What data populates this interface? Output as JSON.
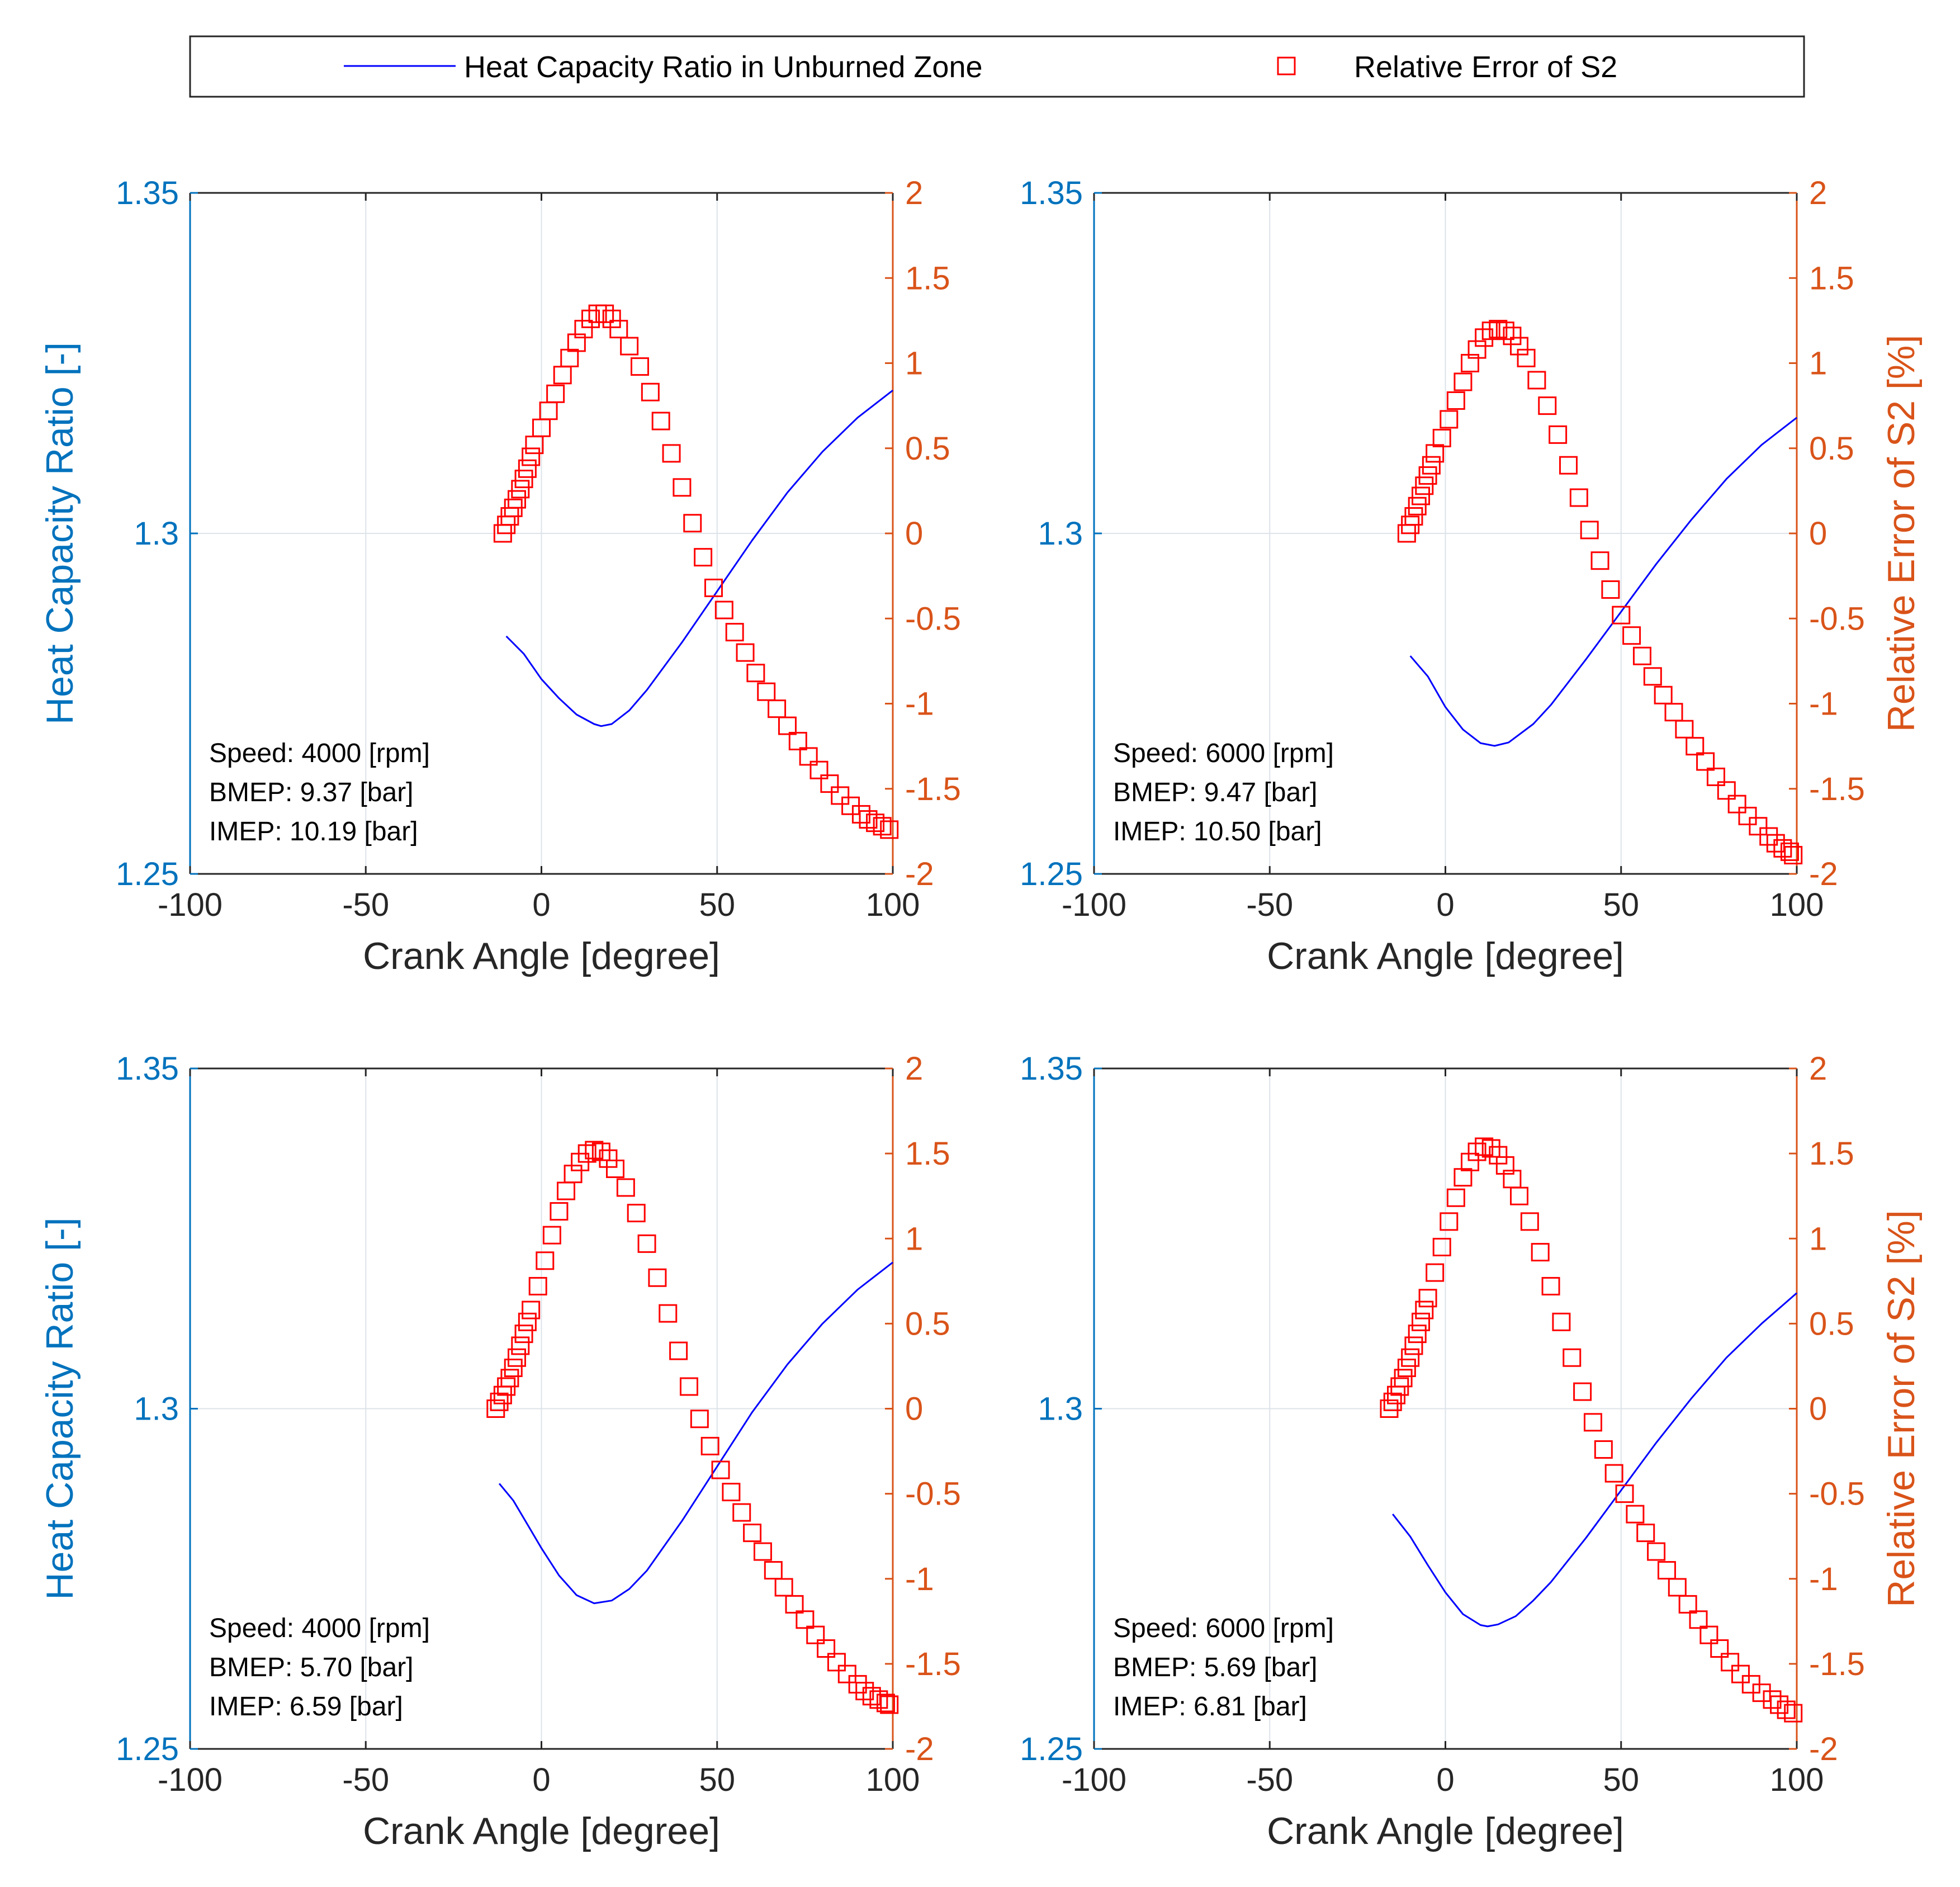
{
  "colors": {
    "left_axis": "#0072BD",
    "right_axis": "#D95319",
    "line": "#0000FF",
    "marker": "#FF0000",
    "grid": "#DDE3EA",
    "frame": "#262626"
  },
  "legend": {
    "line_label": "Heat Capacity Ratio in Unburned Zone",
    "marker_label": "Relative Error of S2",
    "placement": "top"
  },
  "chart_data": [
    {
      "type": "line",
      "position": "top-left",
      "xlabel": "Crank Angle [degree]",
      "ylabel_left": "Heat Capacity Ratio [-]",
      "ylabel_right": "",
      "xlim": [
        -100,
        100
      ],
      "ylim_left": [
        1.25,
        1.35
      ],
      "ylim_right": [
        -2,
        2
      ],
      "xticks": [
        "-100",
        "-50",
        "0",
        "50",
        "100"
      ],
      "yticks_left": [
        "1.25",
        "1.3",
        "1.35"
      ],
      "yticks_right": [
        "-2",
        "-1.5",
        "-1",
        "-0.5",
        "0",
        "0.5",
        "1",
        "1.5",
        "2"
      ],
      "grid": true,
      "annotation": [
        "Speed: 4000 [rpm]",
        "BMEP: 9.37 [bar]",
        "IMEP:  10.19 [bar]"
      ],
      "line_series": {
        "name": "Heat Capacity Ratio in Unburned Zone",
        "x": [
          -10,
          -5,
          0,
          5,
          10,
          15,
          17,
          20,
          25,
          30,
          40,
          50,
          60,
          70,
          80,
          90,
          100
        ],
        "y": [
          1.2849,
          1.2823,
          1.2786,
          1.2758,
          1.2734,
          1.272,
          1.2717,
          1.272,
          1.274,
          1.277,
          1.284,
          1.2915,
          1.299,
          1.306,
          1.312,
          1.317,
          1.321
        ]
      },
      "marker_series": {
        "name": "Relative Error of S2",
        "x": [
          -11,
          -10,
          -9,
          -8,
          -7,
          -6,
          -5,
          -4,
          -3,
          -2,
          0,
          2,
          4,
          6,
          8,
          10,
          12,
          14,
          16,
          18,
          20,
          22,
          25,
          28,
          31,
          34,
          37,
          40,
          43,
          46,
          49,
          52,
          55,
          58,
          61,
          64,
          67,
          70,
          73,
          76,
          79,
          82,
          85,
          88,
          91,
          93,
          95,
          97,
          99
        ],
        "y": [
          0.0,
          0.05,
          0.1,
          0.15,
          0.2,
          0.26,
          0.32,
          0.38,
          0.45,
          0.52,
          0.62,
          0.72,
          0.82,
          0.93,
          1.03,
          1.12,
          1.2,
          1.26,
          1.29,
          1.29,
          1.26,
          1.2,
          1.1,
          0.98,
          0.83,
          0.66,
          0.47,
          0.27,
          0.06,
          -0.14,
          -0.32,
          -0.45,
          -0.58,
          -0.7,
          -0.82,
          -0.93,
          -1.03,
          -1.13,
          -1.22,
          -1.31,
          -1.39,
          -1.47,
          -1.54,
          -1.6,
          -1.65,
          -1.68,
          -1.7,
          -1.72,
          -1.74
        ]
      }
    },
    {
      "type": "line",
      "position": "top-right",
      "xlabel": "Crank Angle [degree]",
      "ylabel_left": "",
      "ylabel_right": "Relative Error of S2 [%]",
      "xlim": [
        -100,
        100
      ],
      "ylim_left": [
        1.25,
        1.35
      ],
      "ylim_right": [
        -2,
        2
      ],
      "xticks": [
        "-100",
        "-50",
        "0",
        "50",
        "100"
      ],
      "yticks_left": [
        "1.25",
        "1.3",
        "1.35"
      ],
      "yticks_right": [
        "-2",
        "-1.5",
        "-1",
        "-0.5",
        "0",
        "0.5",
        "1",
        "1.5",
        "2"
      ],
      "grid": true,
      "annotation": [
        "Speed: 6000 [rpm]",
        "BMEP: 9.47 [bar]",
        "IMEP:  10.50 [bar]"
      ],
      "line_series": {
        "name": "Heat Capacity Ratio in Unburned Zone",
        "x": [
          -10,
          -5,
          0,
          5,
          10,
          14,
          18,
          25,
          30,
          40,
          50,
          60,
          70,
          80,
          90,
          100
        ],
        "y": [
          1.282,
          1.279,
          1.2745,
          1.2712,
          1.2692,
          1.2688,
          1.2693,
          1.272,
          1.2748,
          1.2815,
          1.2885,
          1.2955,
          1.302,
          1.308,
          1.313,
          1.317
        ]
      },
      "marker_series": {
        "name": "Relative Error of S2",
        "x": [
          -11,
          -10,
          -9,
          -8,
          -7,
          -6,
          -5,
          -4,
          -3,
          -1,
          1,
          3,
          5,
          7,
          9,
          11,
          13,
          15,
          17,
          19,
          21,
          23,
          26,
          29,
          32,
          35,
          38,
          41,
          44,
          47,
          50,
          53,
          56,
          59,
          62,
          65,
          68,
          71,
          74,
          77,
          80,
          83,
          86,
          89,
          92,
          94,
          96,
          98,
          99
        ],
        "y": [
          0.0,
          0.05,
          0.1,
          0.16,
          0.22,
          0.28,
          0.34,
          0.4,
          0.47,
          0.56,
          0.67,
          0.78,
          0.89,
          1.0,
          1.08,
          1.15,
          1.19,
          1.2,
          1.19,
          1.16,
          1.1,
          1.03,
          0.9,
          0.75,
          0.58,
          0.4,
          0.21,
          0.02,
          -0.16,
          -0.33,
          -0.48,
          -0.6,
          -0.72,
          -0.84,
          -0.95,
          -1.05,
          -1.15,
          -1.25,
          -1.34,
          -1.43,
          -1.51,
          -1.59,
          -1.66,
          -1.72,
          -1.78,
          -1.82,
          -1.85,
          -1.87,
          -1.89
        ]
      }
    },
    {
      "type": "line",
      "position": "bottom-left",
      "xlabel": "Crank Angle [degree]",
      "ylabel_left": "Heat Capacity Ratio [-]",
      "ylabel_right": "",
      "xlim": [
        -100,
        100
      ],
      "ylim_left": [
        1.25,
        1.35
      ],
      "ylim_right": [
        -2,
        2
      ],
      "xticks": [
        "-100",
        "-50",
        "0",
        "50",
        "100"
      ],
      "yticks_left": [
        "1.25",
        "1.3",
        "1.35"
      ],
      "yticks_right": [
        "-2",
        "-1.5",
        "-1",
        "-0.5",
        "0",
        "0.5",
        "1",
        "1.5",
        "2"
      ],
      "grid": true,
      "annotation": [
        "Speed: 4000 [rpm]",
        "BMEP: 5.70 [bar]",
        "IMEP:  6.59 [bar]"
      ],
      "line_series": {
        "name": "Heat Capacity Ratio in Unburned Zone",
        "x": [
          -12,
          -8,
          -4,
          0,
          5,
          10,
          15,
          20,
          25,
          30,
          40,
          50,
          60,
          70,
          80,
          90,
          100
        ],
        "y": [
          1.289,
          1.2865,
          1.283,
          1.2795,
          1.2755,
          1.2726,
          1.2714,
          1.2718,
          1.2735,
          1.2762,
          1.2835,
          1.2915,
          1.2995,
          1.3065,
          1.3125,
          1.3175,
          1.3215
        ]
      },
      "marker_series": {
        "name": "Relative Error of S2",
        "x": [
          -13,
          -12,
          -11,
          -10,
          -9,
          -8,
          -7,
          -6,
          -5,
          -4,
          -3,
          -1,
          1,
          3,
          5,
          7,
          9,
          11,
          13,
          15,
          17,
          19,
          21,
          24,
          27,
          30,
          33,
          36,
          39,
          42,
          45,
          48,
          51,
          54,
          57,
          60,
          63,
          66,
          69,
          72,
          75,
          78,
          81,
          84,
          87,
          90,
          92,
          94,
          96,
          98,
          99
        ],
        "y": [
          0.0,
          0.04,
          0.08,
          0.13,
          0.18,
          0.24,
          0.3,
          0.37,
          0.44,
          0.51,
          0.58,
          0.72,
          0.87,
          1.02,
          1.16,
          1.28,
          1.38,
          1.45,
          1.5,
          1.52,
          1.51,
          1.47,
          1.41,
          1.3,
          1.15,
          0.97,
          0.77,
          0.56,
          0.34,
          0.13,
          -0.06,
          -0.22,
          -0.36,
          -0.49,
          -0.61,
          -0.73,
          -0.84,
          -0.95,
          -1.05,
          -1.15,
          -1.24,
          -1.33,
          -1.41,
          -1.49,
          -1.56,
          -1.62,
          -1.66,
          -1.69,
          -1.71,
          -1.73,
          -1.74
        ]
      }
    },
    {
      "type": "line",
      "position": "bottom-right",
      "xlabel": "Crank Angle [degree]",
      "ylabel_left": "",
      "ylabel_right": "Relative Error of S2 [%]",
      "xlim": [
        -100,
        100
      ],
      "ylim_left": [
        1.25,
        1.35
      ],
      "ylim_right": [
        -2,
        2
      ],
      "xticks": [
        "-100",
        "-50",
        "0",
        "50",
        "100"
      ],
      "yticks_left": [
        "1.25",
        "1.3",
        "1.35"
      ],
      "yticks_right": [
        "-2",
        "-1.5",
        "-1",
        "-0.5",
        "0",
        "0.5",
        "1",
        "1.5",
        "2"
      ],
      "grid": true,
      "annotation": [
        "Speed: 6000 [rpm]",
        "BMEP: 5.69 [bar]",
        "IMEP:  6.81 [bar]"
      ],
      "line_series": {
        "name": "Heat Capacity Ratio in Unburned Zone",
        "x": [
          -15,
          -10,
          -5,
          0,
          5,
          10,
          12,
          15,
          20,
          25,
          30,
          40,
          50,
          60,
          70,
          80,
          90,
          100
        ],
        "y": [
          1.2845,
          1.2812,
          1.277,
          1.273,
          1.2698,
          1.2682,
          1.268,
          1.2683,
          1.2695,
          1.2718,
          1.2745,
          1.281,
          1.288,
          1.295,
          1.3015,
          1.3075,
          1.3125,
          1.317
        ]
      },
      "marker_series": {
        "name": "Relative Error of S2",
        "x": [
          -16,
          -15,
          -14,
          -13,
          -12,
          -11,
          -10,
          -9,
          -8,
          -7,
          -6,
          -5,
          -3,
          -1,
          1,
          3,
          5,
          7,
          9,
          11,
          13,
          15,
          17,
          19,
          21,
          24,
          27,
          30,
          33,
          36,
          39,
          42,
          45,
          48,
          51,
          54,
          57,
          60,
          63,
          66,
          69,
          72,
          75,
          78,
          81,
          84,
          87,
          90,
          93,
          95,
          97,
          99
        ],
        "y": [
          0.0,
          0.04,
          0.08,
          0.13,
          0.18,
          0.24,
          0.3,
          0.37,
          0.44,
          0.51,
          0.58,
          0.65,
          0.8,
          0.95,
          1.1,
          1.24,
          1.36,
          1.45,
          1.51,
          1.54,
          1.53,
          1.49,
          1.43,
          1.35,
          1.25,
          1.1,
          0.92,
          0.72,
          0.51,
          0.3,
          0.1,
          -0.08,
          -0.24,
          -0.38,
          -0.5,
          -0.62,
          -0.73,
          -0.84,
          -0.95,
          -1.05,
          -1.15,
          -1.24,
          -1.33,
          -1.41,
          -1.49,
          -1.56,
          -1.62,
          -1.67,
          -1.71,
          -1.74,
          -1.77,
          -1.79
        ]
      }
    }
  ]
}
